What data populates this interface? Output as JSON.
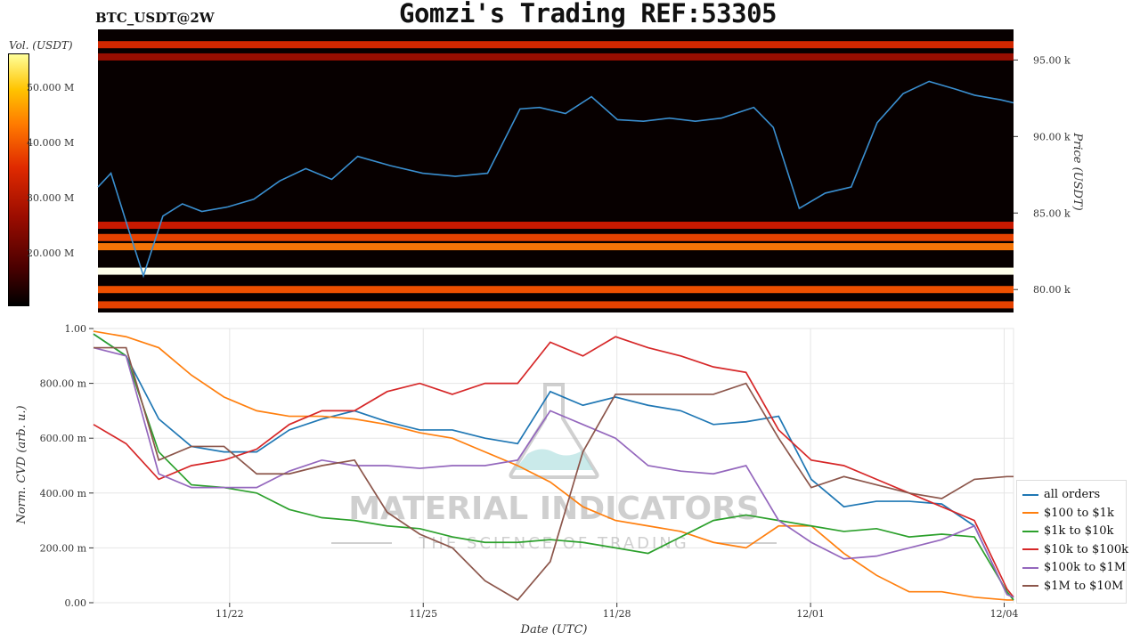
{
  "header": {
    "title": "Gomzi's Trading REF:53305",
    "symbol": "BTC_USDT@2W"
  },
  "colorbar": {
    "label": "Vol. (USDT)",
    "ticks": [
      "50.000 M",
      "40.000 M",
      "30.000 M",
      "20.000 M"
    ]
  },
  "watermark": {
    "line1": "MATERIAL INDICATORS",
    "line2": "THE SCIENCE OF TRADING"
  },
  "colors": {
    "price_line": "#3a8fd0",
    "all_orders": "#1f77b4",
    "100_to_1k": "#ff7f0e",
    "1k_to_10k": "#2ca02c",
    "10k_to_100k": "#d62728",
    "100k_to_1m": "#9467bd",
    "1m_to_10m": "#8c564b"
  },
  "chart_data": [
    {
      "type": "heatmap",
      "ylabel": "Price (USDT)",
      "yticks": [
        "95.00 k",
        "90.00 k",
        "85.00 k",
        "80.00 k"
      ],
      "ylim": [
        78500,
        97000
      ],
      "price_series": {
        "x_days": [
          0,
          0.2,
          0.45,
          0.7,
          1.0,
          1.3,
          1.6,
          2.0,
          2.4,
          2.8,
          3.2,
          3.6,
          4.0,
          4.5,
          5.0,
          5.5,
          6.0,
          6.5,
          6.8,
          7.2,
          7.6,
          8.0,
          8.4,
          8.8,
          9.2,
          9.6,
          10.1,
          10.4,
          10.8,
          11.2,
          11.6,
          12.0,
          12.4,
          12.8,
          13.2,
          13.5,
          13.9,
          14.1
        ],
        "values": [
          86700,
          87600,
          84200,
          80900,
          84800,
          85600,
          85100,
          85400,
          85900,
          87100,
          87900,
          87200,
          88700,
          88100,
          87600,
          87400,
          87600,
          91800,
          91900,
          91500,
          92600,
          91100,
          91000,
          91200,
          91000,
          91200,
          91900,
          90600,
          85300,
          86300,
          86700,
          90900,
          92800,
          93600,
          93100,
          92700,
          92400,
          92200
        ]
      },
      "liquidity_bands": [
        {
          "price": 96000,
          "level": 0.6
        },
        {
          "price": 95200,
          "level": 0.4
        },
        {
          "price": 84200,
          "level": 0.55
        },
        {
          "price": 83400,
          "level": 0.7
        },
        {
          "price": 82800,
          "level": 0.8
        },
        {
          "price": 81200,
          "level": 1.0
        },
        {
          "price": 80000,
          "level": 0.75
        },
        {
          "price": 79000,
          "level": 0.7
        }
      ]
    },
    {
      "type": "line",
      "xlabel": "Date (UTC)",
      "ylabel": "Norm. CVD (arb. u.)",
      "xticks": [
        "11/22",
        "11/25",
        "11/28",
        "12/01",
        "12/04"
      ],
      "yticks": [
        "1.00",
        "800.00 m",
        "600.00 m",
        "400.00 m",
        "200.00 m",
        "0.00"
      ],
      "ylim": [
        0,
        1
      ],
      "grid": true,
      "legend_position": "right",
      "x_days": [
        0,
        0.5,
        1.0,
        1.5,
        2.0,
        2.5,
        3.0,
        3.5,
        4.0,
        4.5,
        5.0,
        5.5,
        6.0,
        6.5,
        7.0,
        7.5,
        8.0,
        8.5,
        9.0,
        9.5,
        10.0,
        10.5,
        11.0,
        11.5,
        12.0,
        12.5,
        13.0,
        13.5,
        14.0,
        14.1
      ],
      "series": [
        {
          "name": "all orders",
          "key": "all_orders",
          "values": [
            0.98,
            0.9,
            0.67,
            0.57,
            0.55,
            0.55,
            0.63,
            0.67,
            0.7,
            0.66,
            0.63,
            0.63,
            0.6,
            0.58,
            0.77,
            0.72,
            0.75,
            0.72,
            0.7,
            0.65,
            0.66,
            0.68,
            0.45,
            0.35,
            0.37,
            0.37,
            0.36,
            0.28,
            0.03,
            0.02
          ]
        },
        {
          "name": "$100 to $1k",
          "key": "100_to_1k",
          "values": [
            0.99,
            0.97,
            0.93,
            0.83,
            0.75,
            0.7,
            0.68,
            0.68,
            0.67,
            0.65,
            0.62,
            0.6,
            0.55,
            0.5,
            0.44,
            0.35,
            0.3,
            0.28,
            0.26,
            0.22,
            0.2,
            0.28,
            0.28,
            0.18,
            0.1,
            0.04,
            0.04,
            0.02,
            0.01,
            0.01
          ]
        },
        {
          "name": "$1k to $10k",
          "key": "1k_to_10k",
          "values": [
            0.98,
            0.9,
            0.55,
            0.43,
            0.42,
            0.4,
            0.34,
            0.31,
            0.3,
            0.28,
            0.27,
            0.24,
            0.22,
            0.22,
            0.23,
            0.22,
            0.2,
            0.18,
            0.24,
            0.3,
            0.32,
            0.3,
            0.28,
            0.26,
            0.27,
            0.24,
            0.25,
            0.24,
            0.04,
            0.01
          ]
        },
        {
          "name": "$10k to $100k",
          "key": "10k_to_100k",
          "values": [
            0.65,
            0.58,
            0.45,
            0.5,
            0.52,
            0.56,
            0.65,
            0.7,
            0.7,
            0.77,
            0.8,
            0.76,
            0.8,
            0.8,
            0.95,
            0.9,
            0.97,
            0.93,
            0.9,
            0.86,
            0.84,
            0.63,
            0.52,
            0.5,
            0.45,
            0.4,
            0.35,
            0.3,
            0.05,
            0.02
          ]
        },
        {
          "name": "$100k to $1M",
          "key": "100k_to_1m",
          "values": [
            0.93,
            0.9,
            0.47,
            0.42,
            0.42,
            0.42,
            0.48,
            0.52,
            0.5,
            0.5,
            0.49,
            0.5,
            0.5,
            0.52,
            0.7,
            0.65,
            0.6,
            0.5,
            0.48,
            0.47,
            0.5,
            0.3,
            0.22,
            0.16,
            0.17,
            0.2,
            0.23,
            0.28,
            0.03,
            0.02
          ]
        },
        {
          "name": "$1M to $10M",
          "key": "1m_to_10m",
          "values": [
            0.93,
            0.93,
            0.52,
            0.57,
            0.57,
            0.47,
            0.47,
            0.5,
            0.52,
            0.33,
            0.25,
            0.2,
            0.08,
            0.01,
            0.15,
            0.55,
            0.76,
            0.76,
            0.76,
            0.76,
            0.8,
            0.6,
            0.42,
            0.46,
            0.43,
            0.4,
            0.38,
            0.45,
            0.46,
            0.46
          ]
        }
      ]
    }
  ]
}
